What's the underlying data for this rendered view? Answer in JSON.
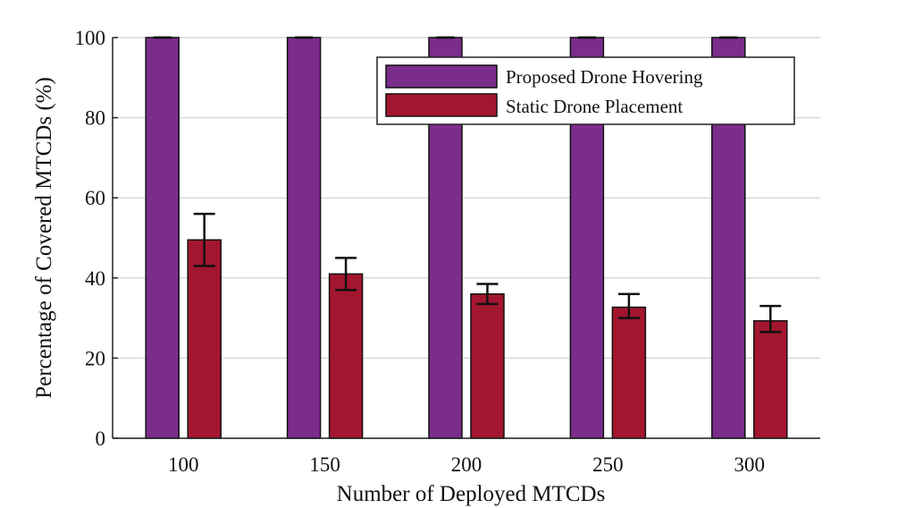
{
  "chart_data": {
    "type": "bar",
    "title": "",
    "xlabel": "Number of Deployed MTCDs",
    "ylabel": "Percentage of Covered MTCDs (%)",
    "categories": [
      "100",
      "150",
      "200",
      "250",
      "300"
    ],
    "ylim": [
      0,
      100
    ],
    "yticks": [
      "0",
      "20",
      "40",
      "60",
      "80",
      "100"
    ],
    "grid": true,
    "legend_position": "top-right",
    "series": [
      {
        "name": "Proposed Drone Hovering",
        "color": "#7b2d8b",
        "values": [
          100,
          100,
          100,
          100,
          100
        ],
        "error_low": [
          100,
          100,
          100,
          100,
          100
        ],
        "error_high": [
          100,
          100,
          100,
          100,
          100
        ]
      },
      {
        "name": "Static Drone Placement",
        "color": "#a3162f",
        "values": [
          49.5,
          41,
          36,
          32.7,
          29.3
        ],
        "error_low": [
          43,
          37,
          33.5,
          30,
          26.5
        ],
        "error_high": [
          56,
          45,
          38.5,
          36,
          33
        ]
      }
    ]
  }
}
